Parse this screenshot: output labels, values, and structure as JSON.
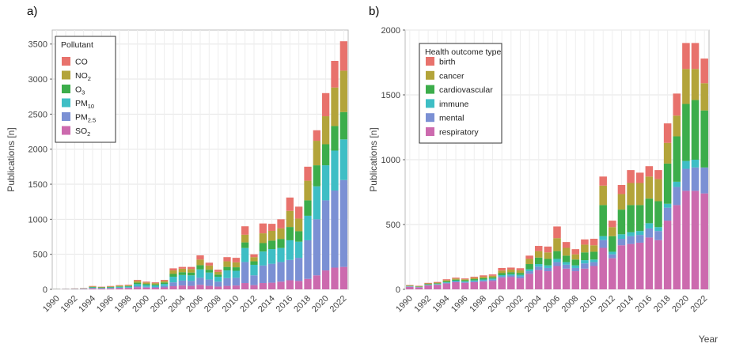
{
  "panels": {
    "a_label": "a)",
    "b_label": "b)"
  },
  "chart_data": [
    {
      "type": "bar",
      "stacked": true,
      "ylabel": "Publications [n]",
      "xlabel": "",
      "ylim": [
        0,
        3700
      ],
      "yticks": [
        0,
        500,
        1000,
        1500,
        2000,
        2500,
        3000,
        3500
      ],
      "grid": true,
      "legend_position": "top-left",
      "legend_title": "Pollutant",
      "categories": [
        1990,
        1991,
        1992,
        1993,
        1994,
        1995,
        1996,
        1997,
        1998,
        1999,
        2000,
        2001,
        2002,
        2003,
        2004,
        2005,
        2006,
        2007,
        2008,
        2009,
        2010,
        2011,
        2012,
        2013,
        2014,
        2015,
        2016,
        2017,
        2018,
        2019,
        2020,
        2021,
        2022
      ],
      "xtick_labels": [
        "1990",
        "1992",
        "1994",
        "1996",
        "1998",
        "2000",
        "2002",
        "2004",
        "2006",
        "2008",
        "2010",
        "2012",
        "2014",
        "2016",
        "2018",
        "2020",
        "2022"
      ],
      "series": [
        {
          "name": "SO",
          "sub": "2",
          "color": "#cc6aae",
          "values": [
            3,
            4,
            5,
            7,
            15,
            12,
            15,
            18,
            20,
            30,
            25,
            22,
            28,
            45,
            55,
            50,
            65,
            50,
            40,
            50,
            55,
            90,
            60,
            90,
            95,
            110,
            130,
            120,
            150,
            200,
            270,
            310,
            320
          ]
        },
        {
          "name": "PM",
          "sub": "2.5",
          "color": "#7b90d4",
          "values": [
            0,
            0,
            1,
            1,
            3,
            3,
            3,
            5,
            5,
            15,
            12,
            12,
            20,
            55,
            70,
            70,
            100,
            90,
            70,
            110,
            110,
            300,
            140,
            250,
            270,
            280,
            290,
            330,
            550,
            800,
            1000,
            1100,
            1240
          ]
        },
        {
          "name": "PM",
          "sub": "10",
          "color": "#3ebec5",
          "values": [
            2,
            2,
            3,
            4,
            10,
            8,
            10,
            12,
            15,
            30,
            25,
            22,
            30,
            80,
            80,
            80,
            120,
            100,
            70,
            110,
            100,
            200,
            150,
            200,
            210,
            200,
            280,
            230,
            350,
            470,
            500,
            570,
            580
          ]
        },
        {
          "name": "O",
          "sub": "3",
          "color": "#3cad4b",
          "values": [
            1,
            1,
            1,
            2,
            6,
            5,
            6,
            8,
            8,
            20,
            16,
            15,
            20,
            40,
            40,
            40,
            60,
            40,
            30,
            50,
            50,
            80,
            50,
            120,
            120,
            130,
            190,
            150,
            220,
            300,
            300,
            350,
            390
          ]
        },
        {
          "name": "NO",
          "sub": "2",
          "color": "#b3a43a",
          "values": [
            1,
            1,
            2,
            2,
            8,
            6,
            8,
            10,
            10,
            25,
            20,
            18,
            22,
            50,
            50,
            50,
            80,
            60,
            40,
            80,
            70,
            110,
            60,
            140,
            140,
            150,
            230,
            180,
            280,
            350,
            400,
            550,
            590
          ]
        },
        {
          "name": "CO",
          "sub": "",
          "color": "#e8726c",
          "values": [
            1,
            1,
            1,
            2,
            6,
            4,
            6,
            7,
            8,
            15,
            12,
            11,
            15,
            30,
            25,
            30,
            60,
            40,
            30,
            60,
            65,
            120,
            40,
            140,
            100,
            130,
            190,
            170,
            200,
            150,
            330,
            380,
            420
          ]
        }
      ]
    },
    {
      "type": "bar",
      "stacked": true,
      "ylabel": "Publications [n]",
      "xlabel": "Year",
      "ylim": [
        0,
        2000
      ],
      "yticks": [
        0,
        500,
        1000,
        1500,
        2000
      ],
      "grid": true,
      "legend_position": "top-left",
      "legend_title": "Health outcome type",
      "categories": [
        1990,
        1991,
        1992,
        1993,
        1994,
        1995,
        1996,
        1997,
        1998,
        1999,
        2000,
        2001,
        2002,
        2003,
        2004,
        2005,
        2006,
        2007,
        2008,
        2009,
        2010,
        2011,
        2012,
        2013,
        2014,
        2015,
        2016,
        2017,
        2018,
        2019,
        2020,
        2021,
        2022
      ],
      "xtick_labels": [
        "1990",
        "1992",
        "1994",
        "1996",
        "1998",
        "2000",
        "2002",
        "2004",
        "2006",
        "2008",
        "2010",
        "2012",
        "2014",
        "2016",
        "2018",
        "2020",
        "2022"
      ],
      "series": [
        {
          "name": "respiratory",
          "color": "#cc6aae",
          "values": [
            20,
            15,
            30,
            35,
            45,
            55,
            50,
            55,
            60,
            65,
            90,
            95,
            85,
            120,
            150,
            140,
            180,
            160,
            140,
            160,
            180,
            320,
            240,
            340,
            350,
            360,
            400,
            380,
            530,
            650,
            760,
            760,
            740
          ]
        },
        {
          "name": "mental",
          "color": "#7b90d4",
          "values": [
            2,
            2,
            3,
            3,
            5,
            6,
            6,
            7,
            8,
            9,
            10,
            12,
            15,
            20,
            25,
            25,
            30,
            30,
            25,
            40,
            30,
            60,
            30,
            50,
            60,
            60,
            70,
            70,
            100,
            140,
            170,
            180,
            200
          ]
        },
        {
          "name": "immune",
          "color": "#3ebec5",
          "values": [
            2,
            2,
            3,
            4,
            5,
            6,
            6,
            7,
            8,
            9,
            10,
            10,
            12,
            15,
            20,
            20,
            25,
            20,
            20,
            25,
            20,
            30,
            20,
            35,
            30,
            30,
            40,
            30,
            30,
            40,
            60,
            60,
            0
          ]
        },
        {
          "name": "cardiovascular",
          "color": "#3cad4b",
          "values": [
            3,
            3,
            5,
            5,
            8,
            8,
            8,
            10,
            10,
            10,
            15,
            15,
            15,
            40,
            50,
            50,
            60,
            50,
            45,
            60,
            60,
            240,
            120,
            190,
            210,
            200,
            190,
            200,
            310,
            350,
            440,
            460,
            440
          ]
        },
        {
          "name": "cancer",
          "color": "#b3a43a",
          "values": [
            3,
            3,
            5,
            5,
            8,
            8,
            8,
            10,
            12,
            12,
            20,
            20,
            20,
            40,
            50,
            50,
            100,
            60,
            40,
            60,
            50,
            150,
            70,
            120,
            170,
            170,
            170,
            170,
            160,
            160,
            270,
            240,
            210
          ]
        },
        {
          "name": "birth",
          "color": "#e8726c",
          "values": [
            3,
            3,
            4,
            5,
            7,
            7,
            6,
            8,
            10,
            10,
            20,
            16,
            16,
            25,
            40,
            45,
            90,
            45,
            40,
            40,
            50,
            70,
            50,
            70,
            100,
            80,
            80,
            70,
            150,
            170,
            200,
            200,
            190
          ]
        }
      ]
    }
  ]
}
